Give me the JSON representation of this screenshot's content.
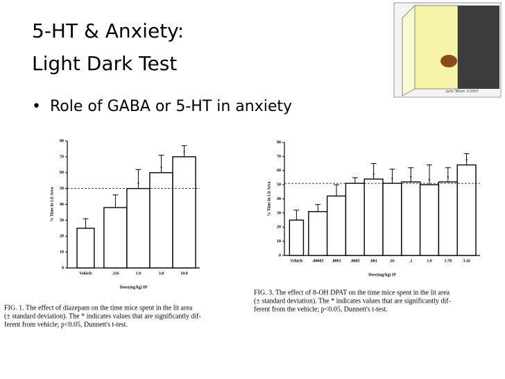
{
  "slide_title": [
    "5-HT & Anxiety:",
    "Light Dark Test"
  ],
  "bullet": "Role of GABA or 5-HT in anxiety",
  "image_credit": "Lynn Talton ©2007",
  "chart_data": [
    {
      "type": "bar",
      "ylabel": "% Time in Lit Area",
      "xlabel": "Dose(mg/kg) IP",
      "categories": [
        "Vehicle",
        ".316",
        "1.0",
        "3.0",
        "10.0"
      ],
      "values": [
        25,
        38,
        50,
        60,
        70
      ],
      "errors": [
        6,
        8,
        12,
        11,
        7
      ],
      "markers": [
        null,
        null,
        "*",
        "*",
        "*"
      ],
      "reference_line": 50,
      "ylim": [
        0,
        80
      ],
      "yticks": [
        0,
        10,
        20,
        30,
        40,
        50,
        60,
        70,
        80
      ],
      "color": "#ffffff",
      "caption": [
        "FIG. 1. The effect of diazepam on the time mice spent in the lit area",
        "(± standard deviation). The * indicates values that are significantly dif-",
        "ferent from vehicle; p<0.05, Dunnett's t-test."
      ]
    },
    {
      "type": "bar",
      "ylabel": "% Time in Lit Area",
      "xlabel": "Dose(mg/kg) IP",
      "categories": [
        "Vehicle",
        ".00005",
        ".0001",
        ".0005",
        ".001",
        ".01",
        ".1",
        "1.0",
        "1.78",
        "3.16"
      ],
      "values": [
        25,
        31,
        42,
        51,
        54,
        51,
        52,
        50,
        52,
        64
      ],
      "errors": [
        7,
        5,
        8,
        4,
        11,
        10,
        10,
        14,
        10,
        8
      ],
      "markers": [
        null,
        null,
        null,
        null,
        "*",
        "*",
        "*",
        "*",
        "*",
        "*"
      ],
      "reference_line": 51,
      "ylim": [
        0,
        80
      ],
      "yticks": [
        0,
        10,
        20,
        30,
        40,
        50,
        60,
        70,
        80
      ],
      "color": "#ffffff",
      "caption": [
        "FIG. 3. The effect of 8-OH DPAT on the time mice spent in the lit area",
        "(± standard deviation). The * indicates values that are significantly dif-",
        "ferent from the vehicle; p<0.05, Dunnett's t-test."
      ]
    }
  ]
}
